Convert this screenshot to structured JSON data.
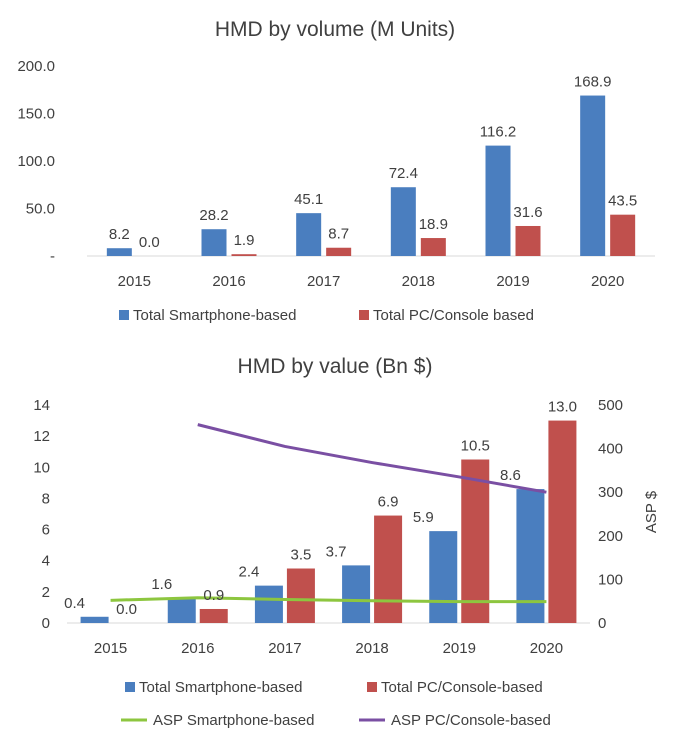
{
  "colors": {
    "smartphone": "#4a7ebf",
    "pc_console": "#c0504d",
    "asp_smartphone": "#8dc63f",
    "asp_pc_console": "#7a4fa3"
  },
  "chart_data": [
    {
      "type": "bar",
      "title": "HMD by volume (M Units)",
      "categories": [
        "2015",
        "2016",
        "2017",
        "2018",
        "2019",
        "2020"
      ],
      "ylim": [
        0,
        200
      ],
      "yticks": [
        "-",
        "50.0",
        "100.0",
        "150.0",
        "200.0"
      ],
      "grid": false,
      "legend_placement": "bottom",
      "series": [
        {
          "name": "Total Smartphone-based",
          "values": [
            8.2,
            28.2,
            45.1,
            72.4,
            116.2,
            168.9
          ],
          "labels": [
            "8.2",
            "28.2",
            "45.1",
            "72.4",
            "116.2",
            "168.9"
          ]
        },
        {
          "name": "Total PC/Console based",
          "values": [
            0.0,
            1.9,
            8.7,
            18.9,
            31.6,
            43.5
          ],
          "labels": [
            "0.0",
            "1.9",
            "8.7",
            "18.9",
            "31.6",
            "43.5"
          ]
        }
      ]
    },
    {
      "type": "bar",
      "title": "HMD by value (Bn $)",
      "categories": [
        "2015",
        "2016",
        "2017",
        "2018",
        "2019",
        "2020"
      ],
      "ylim": [
        0,
        14
      ],
      "yticks": [
        "0",
        "2",
        "4",
        "6",
        "8",
        "10",
        "12",
        "14"
      ],
      "y2label": "ASP $",
      "y2lim": [
        0,
        500
      ],
      "y2ticks": [
        "0",
        "100",
        "200",
        "300",
        "400",
        "500"
      ],
      "grid": false,
      "legend_placement": "bottom",
      "series": [
        {
          "name": "Total Smartphone-based",
          "values": [
            0.4,
            1.6,
            2.4,
            3.7,
            5.9,
            8.6
          ],
          "labels": [
            "0.4",
            "1.6",
            "2.4",
            "3.7",
            "5.9",
            "8.6"
          ]
        },
        {
          "name": "Total PC/Console-based",
          "values": [
            0.0,
            0.9,
            3.5,
            6.9,
            10.5,
            13.0
          ],
          "labels": [
            "0.0",
            "0.9",
            "3.5",
            "6.9",
            "10.5",
            "13.0"
          ]
        }
      ],
      "line_series": [
        {
          "name": "ASP Smartphone-based",
          "axis": "right",
          "values": [
            52,
            58,
            54,
            51,
            49,
            49
          ]
        },
        {
          "name": "ASP PC/Console-based",
          "axis": "right",
          "values": [
            null,
            455,
            405,
            368,
            335,
            300
          ]
        }
      ]
    }
  ]
}
